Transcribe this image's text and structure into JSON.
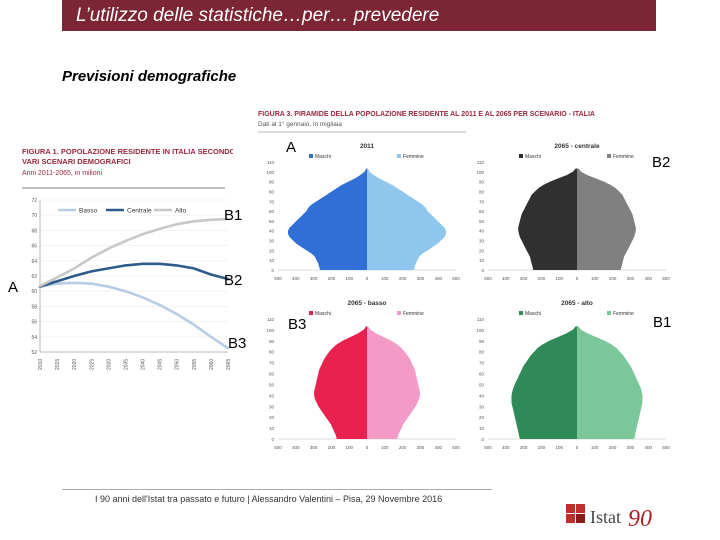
{
  "header": {
    "title": "L’utilizzo delle statistiche…per… prevedere"
  },
  "subtitle": "Previsioni demografiche",
  "footer": "I 90 anni dell'Istat tra passato e futuro | Alessandro Valentini – Pisa, 29 Novembre 2016",
  "logo": {
    "text": "Istat",
    "number": "90",
    "icon": "istat-logo-icon"
  },
  "colors": {
    "title_bar": "#7b2535",
    "basso": "#b8cce4",
    "centrale": "#2e5c8e",
    "alto": "#c8c8c8",
    "maschi_2011": "#2f6fd6",
    "femmine_2011": "#8ec6ee",
    "maschi_centrale": "#303030",
    "femmine_centrale": "#808080",
    "maschi_basso": "#e8214f",
    "femmine_basso": "#f49ac7",
    "maschi_alto": "#2e8b57",
    "femmine_alto": "#7cc79a"
  },
  "overlay_labels": {
    "a_top": "A",
    "b2_top": "B2",
    "b1_mid": "B1",
    "a_left": "A",
    "b2_mid": "B2",
    "b3_low": "B3",
    "b3_right": "B3",
    "b1_right": "B1"
  },
  "chart_data": [
    {
      "type": "line",
      "title": "FIGURA 1. POPOLAZIONE RESIDENTE IN ITALIA SECONDO VARI SCENARI DEMOGRAFICI",
      "subtitle": "Anni 2011-2065, in milioni",
      "x": [
        2010,
        2015,
        2020,
        2025,
        2030,
        2035,
        2040,
        2045,
        2050,
        2055,
        2060,
        2065
      ],
      "ylim": [
        52,
        72
      ],
      "yticks": [
        52,
        54,
        56,
        58,
        60,
        62,
        64,
        66,
        68,
        70,
        72
      ],
      "series": [
        {
          "name": "Basso",
          "values": [
            60.6,
            61.0,
            61.1,
            61.0,
            60.6,
            60.0,
            59.2,
            58.2,
            57.0,
            55.6,
            54.0,
            52.5
          ]
        },
        {
          "name": "Centrale",
          "values": [
            60.6,
            61.3,
            62.0,
            62.6,
            63.0,
            63.4,
            63.6,
            63.6,
            63.4,
            63.0,
            62.2,
            61.6
          ]
        },
        {
          "name": "Alto",
          "values": [
            60.7,
            61.8,
            63.0,
            64.4,
            65.6,
            66.6,
            67.5,
            68.2,
            68.8,
            69.2,
            69.4,
            69.5
          ]
        }
      ]
    },
    {
      "type": "bar",
      "title": "FIGURA 3. PIRAMIDE DELLA POPOLAZIONE RESIDENTE AL 2011 E AL 2065 PER SCENARIO - ITALIA",
      "subtitle": "Dati al 1° gennaio, in migliaia",
      "age_ticks": [
        0,
        10,
        20,
        30,
        40,
        50,
        60,
        70,
        80,
        90,
        100,
        110
      ],
      "x_ticks": [
        "500",
        "400",
        "300",
        "200",
        "100",
        "0",
        "100",
        "200",
        "300",
        "400",
        "500"
      ],
      "panels": [
        {
          "name": "2011",
          "male": "Maschi",
          "female": "Femmine",
          "shape": [
            280,
            285,
            290,
            300,
            310,
            330,
            360,
            390,
            420,
            440,
            460,
            470,
            470,
            460,
            440,
            420,
            400,
            380,
            360,
            350,
            330,
            300,
            270,
            240,
            210,
            180,
            150,
            110,
            70,
            40,
            15,
            5
          ]
        },
        {
          "name": "2065 - centrale",
          "male": "Maschi",
          "female": "Femmine",
          "shape": [
            260,
            265,
            270,
            275,
            280,
            290,
            300,
            310,
            320,
            330,
            340,
            345,
            350,
            350,
            345,
            340,
            335,
            330,
            320,
            310,
            300,
            290,
            280,
            270,
            250,
            230,
            200,
            160,
            110,
            60,
            25,
            8
          ]
        },
        {
          "name": "2065 - basso",
          "male": "Maschi",
          "female": "Femmine",
          "shape": [
            180,
            185,
            195,
            205,
            215,
            230,
            245,
            260,
            275,
            290,
            300,
            310,
            315,
            315,
            310,
            305,
            300,
            295,
            290,
            285,
            275,
            265,
            255,
            240,
            225,
            205,
            180,
            145,
            100,
            55,
            20,
            6
          ]
        },
        {
          "name": "2065 - alto",
          "male": "Maschi",
          "female": "Femmine",
          "shape": [
            340,
            345,
            350,
            355,
            360,
            365,
            370,
            375,
            380,
            385,
            390,
            390,
            390,
            385,
            380,
            370,
            360,
            350,
            340,
            330,
            320,
            305,
            290,
            275,
            255,
            235,
            205,
            165,
            115,
            65,
            25,
            8
          ]
        }
      ]
    }
  ]
}
